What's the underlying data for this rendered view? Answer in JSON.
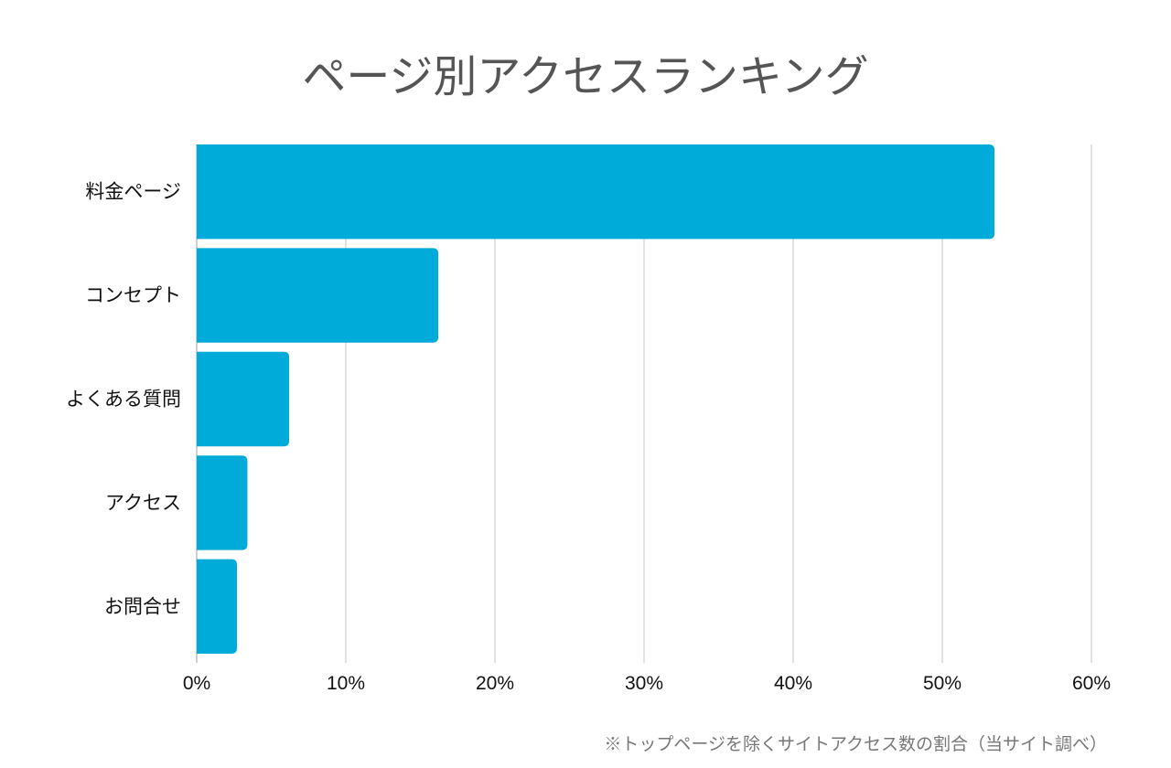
{
  "chart_data": {
    "type": "bar",
    "orientation": "horizontal",
    "title": "ページ別アクセスランキング",
    "note": "※トップページを除くサイトアクセス数の割合（当サイト調べ）",
    "categories": [
      "料金ページ",
      "コンセプト",
      "よくある質問",
      "アクセス",
      "お問合せ"
    ],
    "values": [
      53.5,
      16.2,
      6.2,
      3.4,
      2.7
    ],
    "unit": "%",
    "xlim": [
      0,
      60
    ],
    "ticks": [
      0,
      10,
      20,
      30,
      40,
      50,
      60
    ],
    "tick_labels": [
      "0%",
      "10%",
      "20%",
      "30%",
      "40%",
      "50%",
      "60%"
    ],
    "grid": true,
    "legend": "none",
    "bar_color": "#00aad9"
  }
}
